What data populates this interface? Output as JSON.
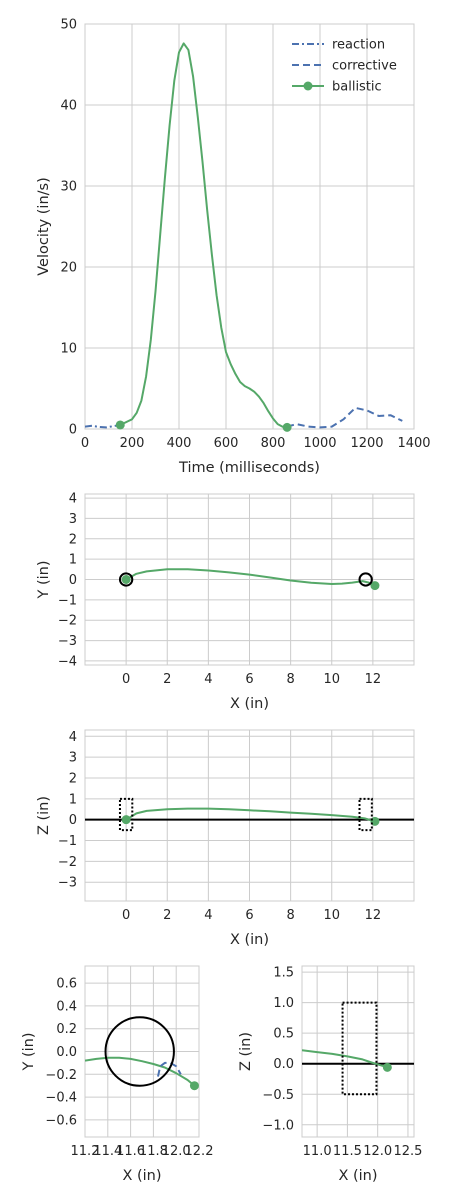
{
  "colors": {
    "reaction": "#4c72b0",
    "corrective": "#4c72b0",
    "ballistic": "#55a868",
    "axis": "#000000"
  },
  "chart_data": [
    {
      "id": "velocity",
      "type": "line",
      "xlabel": "Time (milliseconds)",
      "ylabel": "Velocity (in/s)",
      "xlim": [
        0,
        1400
      ],
      "ylim": [
        0,
        50
      ],
      "xticks": [
        0,
        200,
        400,
        600,
        800,
        1000,
        1200,
        1400
      ],
      "yticks": [
        0,
        10,
        20,
        30,
        40,
        50
      ],
      "grid": true,
      "legend_position": "top-right",
      "series": [
        {
          "name": "reaction",
          "style": "dashdot",
          "x": [
            0,
            30,
            60,
            90,
            120,
            150
          ],
          "y": [
            0.3,
            0.4,
            0.25,
            0.2,
            0.35,
            0.5
          ]
        },
        {
          "name": "corrective",
          "style": "dashed",
          "x": [
            860,
            900,
            950,
            1000,
            1050,
            1100,
            1150,
            1200,
            1250,
            1300,
            1350
          ],
          "y": [
            0.3,
            0.6,
            0.3,
            0.2,
            0.3,
            1.2,
            2.6,
            2.3,
            1.6,
            1.7,
            1.0
          ]
        },
        {
          "name": "ballistic",
          "style": "solid",
          "markers": "endpoints",
          "x": [
            150,
            200,
            220,
            240,
            260,
            280,
            300,
            320,
            340,
            360,
            380,
            400,
            420,
            440,
            460,
            480,
            500,
            520,
            540,
            560,
            580,
            600,
            620,
            640,
            660,
            680,
            700,
            720,
            740,
            760,
            780,
            800,
            820,
            840,
            860
          ],
          "y": [
            0.5,
            1.2,
            2.0,
            3.5,
            6.5,
            11.0,
            17.0,
            24.0,
            31.0,
            37.5,
            43.0,
            46.5,
            47.6,
            46.8,
            43.5,
            38.5,
            33.0,
            27.0,
            21.5,
            16.5,
            12.5,
            9.5,
            8.0,
            6.8,
            5.8,
            5.3,
            5.0,
            4.6,
            4.0,
            3.2,
            2.2,
            1.3,
            0.6,
            0.3,
            0.2
          ]
        }
      ]
    },
    {
      "id": "xy",
      "type": "line",
      "xlabel": "X (in)",
      "ylabel": "Y (in)",
      "xlim": [
        -2,
        14
      ],
      "ylim": [
        -4.2,
        4.2
      ],
      "xticks": [
        0,
        2,
        4,
        6,
        8,
        10,
        12
      ],
      "yticks": [
        -4,
        -3,
        -2,
        -1,
        0,
        1,
        2,
        3,
        4
      ],
      "grid": true,
      "series": [
        {
          "name": "ballistic",
          "style": "solid",
          "markers": "endpoints",
          "x": [
            0,
            0.5,
            1,
            2,
            3,
            4,
            5,
            6,
            7,
            8,
            9,
            10,
            10.5,
            11,
            11.5,
            11.8,
            12.1
          ],
          "y": [
            0,
            0.28,
            0.4,
            0.5,
            0.5,
            0.44,
            0.35,
            0.24,
            0.1,
            -0.05,
            -0.16,
            -0.22,
            -0.2,
            -0.15,
            -0.08,
            -0.15,
            -0.3
          ]
        }
      ],
      "targets": [
        {
          "shape": "circle",
          "cx": 0,
          "cy": 0,
          "r": 0.3
        },
        {
          "shape": "circle",
          "cx": 11.65,
          "cy": 0,
          "r": 0.3
        }
      ]
    },
    {
      "id": "xz",
      "type": "line",
      "xlabel": "X (in)",
      "ylabel": "Z (in)",
      "xlim": [
        -2,
        14
      ],
      "ylim": [
        -3.9,
        4.3
      ],
      "xticks": [
        0,
        2,
        4,
        6,
        8,
        10,
        12
      ],
      "yticks": [
        -3,
        -2,
        -1,
        0,
        1,
        2,
        3,
        4
      ],
      "grid": true,
      "reference_line_y": 0,
      "series": [
        {
          "name": "ballistic",
          "style": "solid",
          "markers": "endpoints",
          "x": [
            0,
            0.5,
            1,
            2,
            3,
            4,
            5,
            6,
            7,
            8,
            9,
            10,
            11,
            11.6,
            12.1
          ],
          "y": [
            0,
            0.3,
            0.42,
            0.5,
            0.53,
            0.53,
            0.5,
            0.45,
            0.4,
            0.34,
            0.28,
            0.22,
            0.14,
            0.06,
            -0.08
          ]
        }
      ],
      "targets": [
        {
          "shape": "rect",
          "x0": -0.3,
          "x1": 0.3,
          "y0": -0.5,
          "y1": 1.0
        },
        {
          "shape": "rect",
          "x0": 11.35,
          "x1": 11.95,
          "y0": -0.5,
          "y1": 1.0
        }
      ]
    },
    {
      "id": "xy-zoom",
      "type": "line",
      "xlabel": "X (in)",
      "ylabel": "Y (in)",
      "xlim": [
        11.2,
        12.2
      ],
      "ylim": [
        -0.75,
        0.75
      ],
      "xticks": [
        11.2,
        11.4,
        11.6,
        11.8,
        12.0,
        12.2
      ],
      "xticklabels": [
        "11.2",
        "11.4",
        "11.6",
        "11.8",
        "12.0",
        "12.2"
      ],
      "yticks": [
        -0.6,
        -0.4,
        -0.2,
        0.0,
        0.2,
        0.4,
        0.6
      ],
      "yticklabels": [
        "−0.6",
        "−0.4",
        "−0.2",
        "0.0",
        "0.2",
        "0.4",
        "0.6"
      ],
      "grid": true,
      "series": [
        {
          "name": "ballistic",
          "style": "solid",
          "markers": "end",
          "x": [
            11.2,
            11.3,
            11.4,
            11.5,
            11.6,
            11.7,
            11.8,
            11.9,
            12.0,
            12.1,
            12.16
          ],
          "y": [
            -0.08,
            -0.065,
            -0.055,
            -0.055,
            -0.065,
            -0.085,
            -0.11,
            -0.14,
            -0.19,
            -0.25,
            -0.3
          ]
        },
        {
          "name": "corrective",
          "style": "dashed",
          "x": [
            11.84,
            11.86,
            11.9,
            11.95,
            12.0,
            12.04
          ],
          "y": [
            -0.22,
            -0.13,
            -0.1,
            -0.1,
            -0.13,
            -0.2
          ]
        }
      ],
      "targets": [
        {
          "shape": "circle",
          "cx": 11.68,
          "cy": 0.0,
          "r": 0.3
        }
      ]
    },
    {
      "id": "xz-zoom",
      "type": "line",
      "xlabel": "X (in)",
      "ylabel": "Z (in)",
      "xlim": [
        10.75,
        12.6
      ],
      "ylim": [
        -1.2,
        1.6
      ],
      "xticks": [
        11.0,
        11.5,
        12.0,
        12.5
      ],
      "xticklabels": [
        "11.0",
        "11.5",
        "12.0",
        "12.5"
      ],
      "yticks": [
        -1.0,
        -0.5,
        0.0,
        0.5,
        1.0,
        1.5
      ],
      "yticklabels": [
        "−1.0",
        "−0.5",
        "0.0",
        "0.5",
        "1.0",
        "1.5"
      ],
      "grid": true,
      "reference_line_y": 0,
      "series": [
        {
          "name": "ballistic",
          "style": "solid",
          "markers": "end",
          "x": [
            10.75,
            11.0,
            11.25,
            11.5,
            11.75,
            11.9,
            12.0,
            12.1,
            12.16
          ],
          "y": [
            0.22,
            0.19,
            0.16,
            0.12,
            0.07,
            0.02,
            -0.01,
            -0.04,
            -0.06
          ]
        }
      ],
      "targets": [
        {
          "shape": "rect",
          "x0": 11.42,
          "x1": 11.98,
          "y0": -0.5,
          "y1": 1.0
        }
      ]
    }
  ]
}
